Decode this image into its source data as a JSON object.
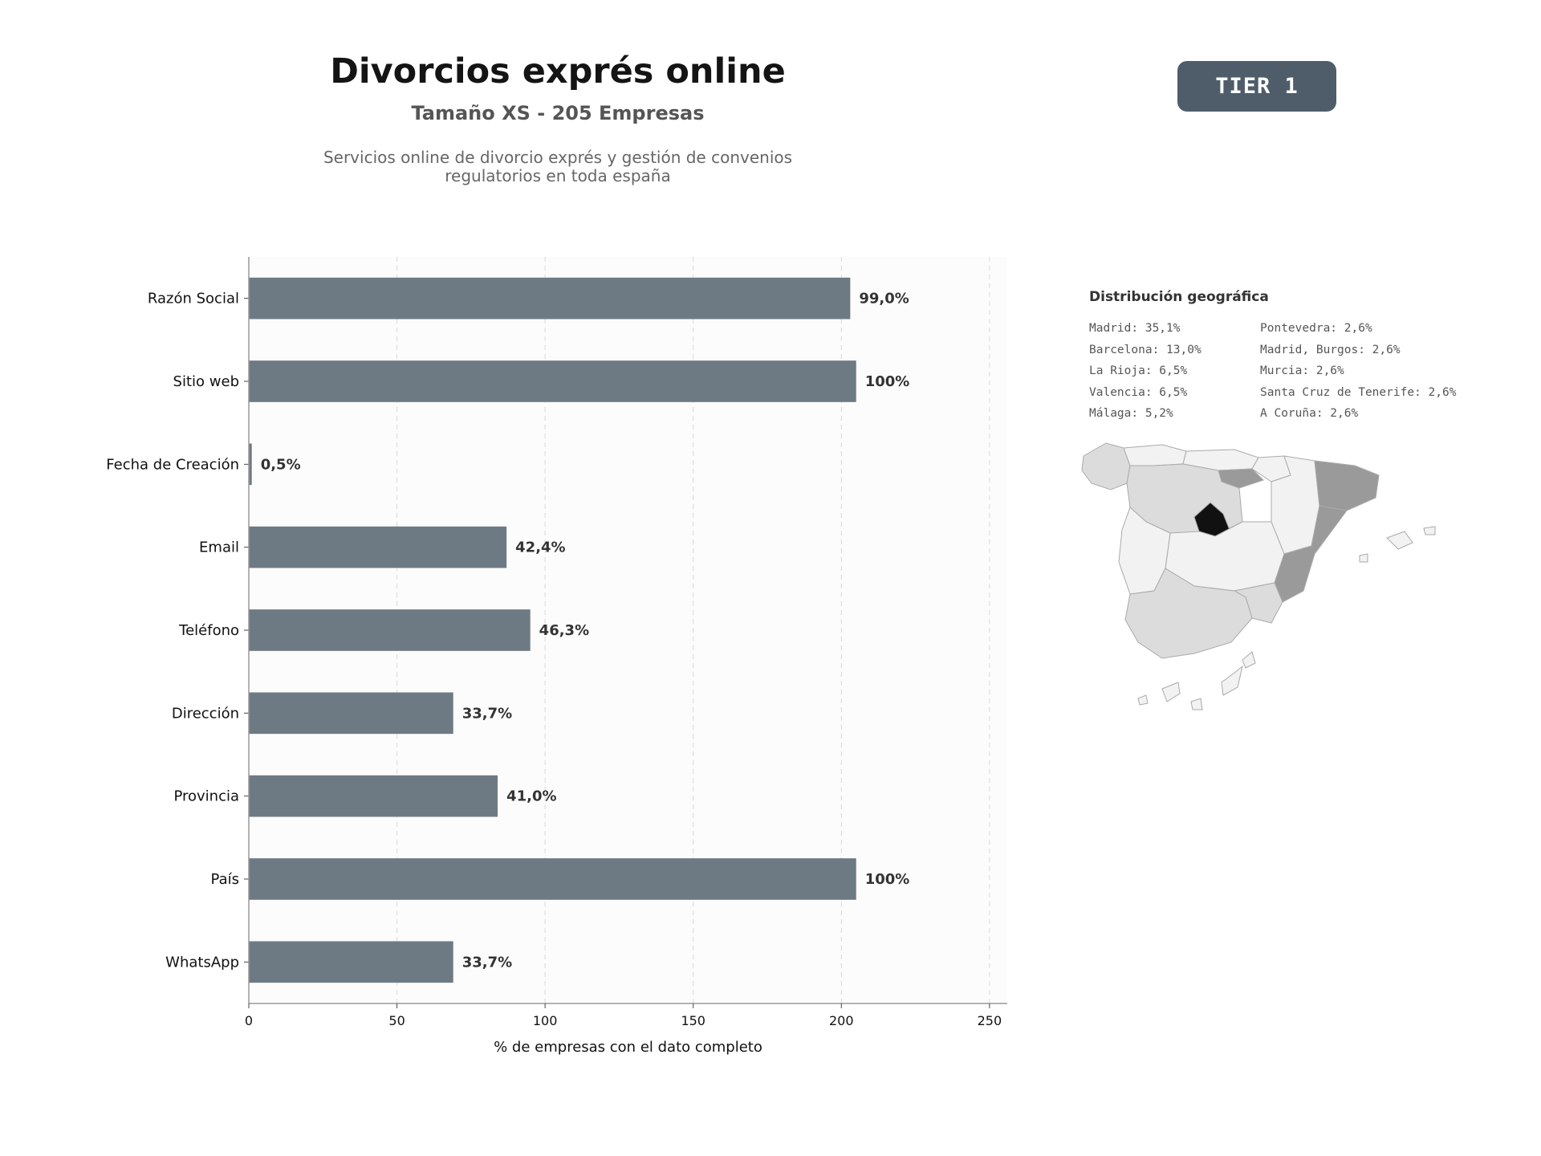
{
  "header": {
    "title": "Divorcios exprés online",
    "subtitle": "Tamaño XS - 205 Empresas",
    "description_line1": "Servicios online de divorcio exprés y gestión de convenios",
    "description_line2": "regulatorios en toda españa",
    "badge": "TIER 1"
  },
  "chart_data": {
    "type": "bar",
    "orientation": "horizontal",
    "categories": [
      "Razón Social",
      "Sitio web",
      "Fecha de Creación",
      "Email",
      "Teléfono",
      "Dirección",
      "Provincia",
      "País",
      "WhatsApp"
    ],
    "values": [
      203,
      205,
      1,
      87,
      95,
      69,
      84,
      205,
      69
    ],
    "data_labels": [
      "99,0%",
      "100%",
      "0,5%",
      "42,4%",
      "46,3%",
      "33,7%",
      "41,0%",
      "100%",
      "33,7%"
    ],
    "xlabel": "% de empresas con el dato completo",
    "xlim": [
      0,
      256
    ],
    "xticks": [
      0,
      50,
      100,
      150,
      200,
      250
    ],
    "grid": "vertical dashed",
    "bar_color": "#6e7a83"
  },
  "geo": {
    "title": "Distribución geográfica",
    "col1": [
      "Madrid: 35,1%",
      "Barcelona: 13,0%",
      "La Rioja: 6,5%",
      "Valencia: 6,5%",
      "Málaga: 5,2%"
    ],
    "col2": [
      "Pontevedra: 2,6%",
      "Madrid, Burgos: 2,6%",
      "Murcia: 2,6%",
      "Santa Cruz de Tenerife: 2,6%",
      "A Coruña: 2,6%"
    ],
    "colors": {
      "high": "#111111",
      "mid": "#9a9a9a",
      "low": "#dcdcdc",
      "base": "#f2f2f2",
      "border": "#aaaaaa"
    }
  }
}
